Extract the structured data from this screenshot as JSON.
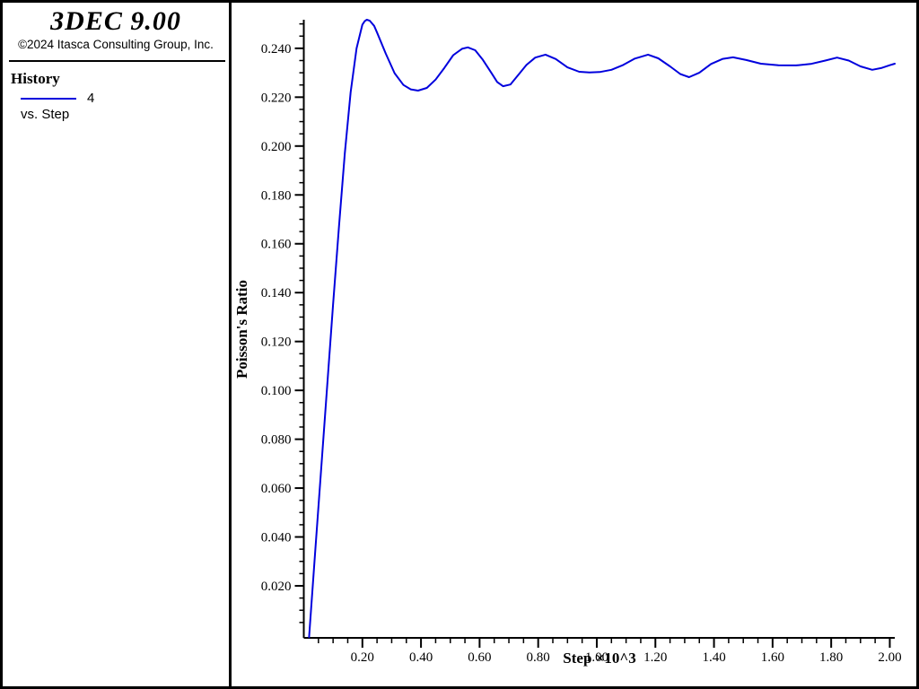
{
  "window": {
    "app_title": "3DEC 9.00",
    "copyright": "©2024 Itasca Consulting Group, Inc."
  },
  "sidebar": {
    "section_title": "History",
    "legend_label": "4",
    "vs_label": "vs. Step",
    "legend_color": "#0000dd"
  },
  "chart_data": {
    "type": "line",
    "title": "",
    "xlabel": "Step ×10^3",
    "ylabel": "Poisson's Ratio",
    "xlim": [
      0,
      2.017
    ],
    "ylim": [
      -0.0013,
      0.2517
    ],
    "grid": false,
    "legend_position": "sidebar",
    "x_major_ticks": [
      0.2,
      0.4,
      0.6,
      0.8,
      1.0,
      1.2,
      1.4,
      1.6,
      1.8,
      2.0
    ],
    "x_tick_labels": [
      "0.20",
      "0.40",
      "0.60",
      "0.80",
      "1.00",
      "1.20",
      "1.40",
      "1.60",
      "1.80",
      "2.00"
    ],
    "x_minor_step": 0.05,
    "y_major_ticks": [
      0.02,
      0.04,
      0.06,
      0.08,
      0.1,
      0.12,
      0.14,
      0.16,
      0.18,
      0.2,
      0.22,
      0.24
    ],
    "y_tick_labels": [
      "0.020",
      "0.040",
      "0.060",
      "0.080",
      "0.100",
      "0.120",
      "0.140",
      "0.160",
      "0.180",
      "0.200",
      "0.220",
      "0.240"
    ],
    "y_minor_step": 0.005,
    "series": [
      {
        "name": "4",
        "color": "#0000dd",
        "points": [
          [
            0.018,
            -0.001
          ],
          [
            0.04,
            0.036
          ],
          [
            0.06,
            0.069
          ],
          [
            0.08,
            0.102
          ],
          [
            0.1,
            0.135
          ],
          [
            0.12,
            0.167
          ],
          [
            0.14,
            0.197
          ],
          [
            0.16,
            0.222
          ],
          [
            0.18,
            0.24
          ],
          [
            0.2,
            0.2497
          ],
          [
            0.208,
            0.2511
          ],
          [
            0.215,
            0.2517
          ],
          [
            0.225,
            0.2513
          ],
          [
            0.24,
            0.2492
          ],
          [
            0.25,
            0.2465
          ],
          [
            0.28,
            0.2378
          ],
          [
            0.31,
            0.2298
          ],
          [
            0.34,
            0.225
          ],
          [
            0.365,
            0.2232
          ],
          [
            0.39,
            0.2227
          ],
          [
            0.42,
            0.2238
          ],
          [
            0.45,
            0.2272
          ],
          [
            0.48,
            0.232
          ],
          [
            0.51,
            0.2372
          ],
          [
            0.54,
            0.2398
          ],
          [
            0.56,
            0.2404
          ],
          [
            0.585,
            0.2392
          ],
          [
            0.61,
            0.2355
          ],
          [
            0.64,
            0.23
          ],
          [
            0.66,
            0.2262
          ],
          [
            0.68,
            0.2245
          ],
          [
            0.705,
            0.2252
          ],
          [
            0.73,
            0.2288
          ],
          [
            0.76,
            0.2332
          ],
          [
            0.79,
            0.2362
          ],
          [
            0.825,
            0.2374
          ],
          [
            0.86,
            0.2356
          ],
          [
            0.9,
            0.2322
          ],
          [
            0.94,
            0.2304
          ],
          [
            0.975,
            0.2301
          ],
          [
            1.01,
            0.2303
          ],
          [
            1.05,
            0.2312
          ],
          [
            1.09,
            0.2332
          ],
          [
            1.13,
            0.2358
          ],
          [
            1.175,
            0.2374
          ],
          [
            1.21,
            0.2359
          ],
          [
            1.25,
            0.2326
          ],
          [
            1.285,
            0.2295
          ],
          [
            1.315,
            0.2282
          ],
          [
            1.35,
            0.23
          ],
          [
            1.39,
            0.2336
          ],
          [
            1.43,
            0.2357
          ],
          [
            1.465,
            0.2363
          ],
          [
            1.51,
            0.2352
          ],
          [
            1.56,
            0.2337
          ],
          [
            1.62,
            0.2331
          ],
          [
            1.68,
            0.233
          ],
          [
            1.73,
            0.2336
          ],
          [
            1.78,
            0.235
          ],
          [
            1.82,
            0.2362
          ],
          [
            1.86,
            0.235
          ],
          [
            1.9,
            0.2326
          ],
          [
            1.94,
            0.2312
          ],
          [
            1.97,
            0.2319
          ],
          [
            2.0,
            0.2331
          ],
          [
            2.017,
            0.2337
          ]
        ]
      }
    ]
  }
}
